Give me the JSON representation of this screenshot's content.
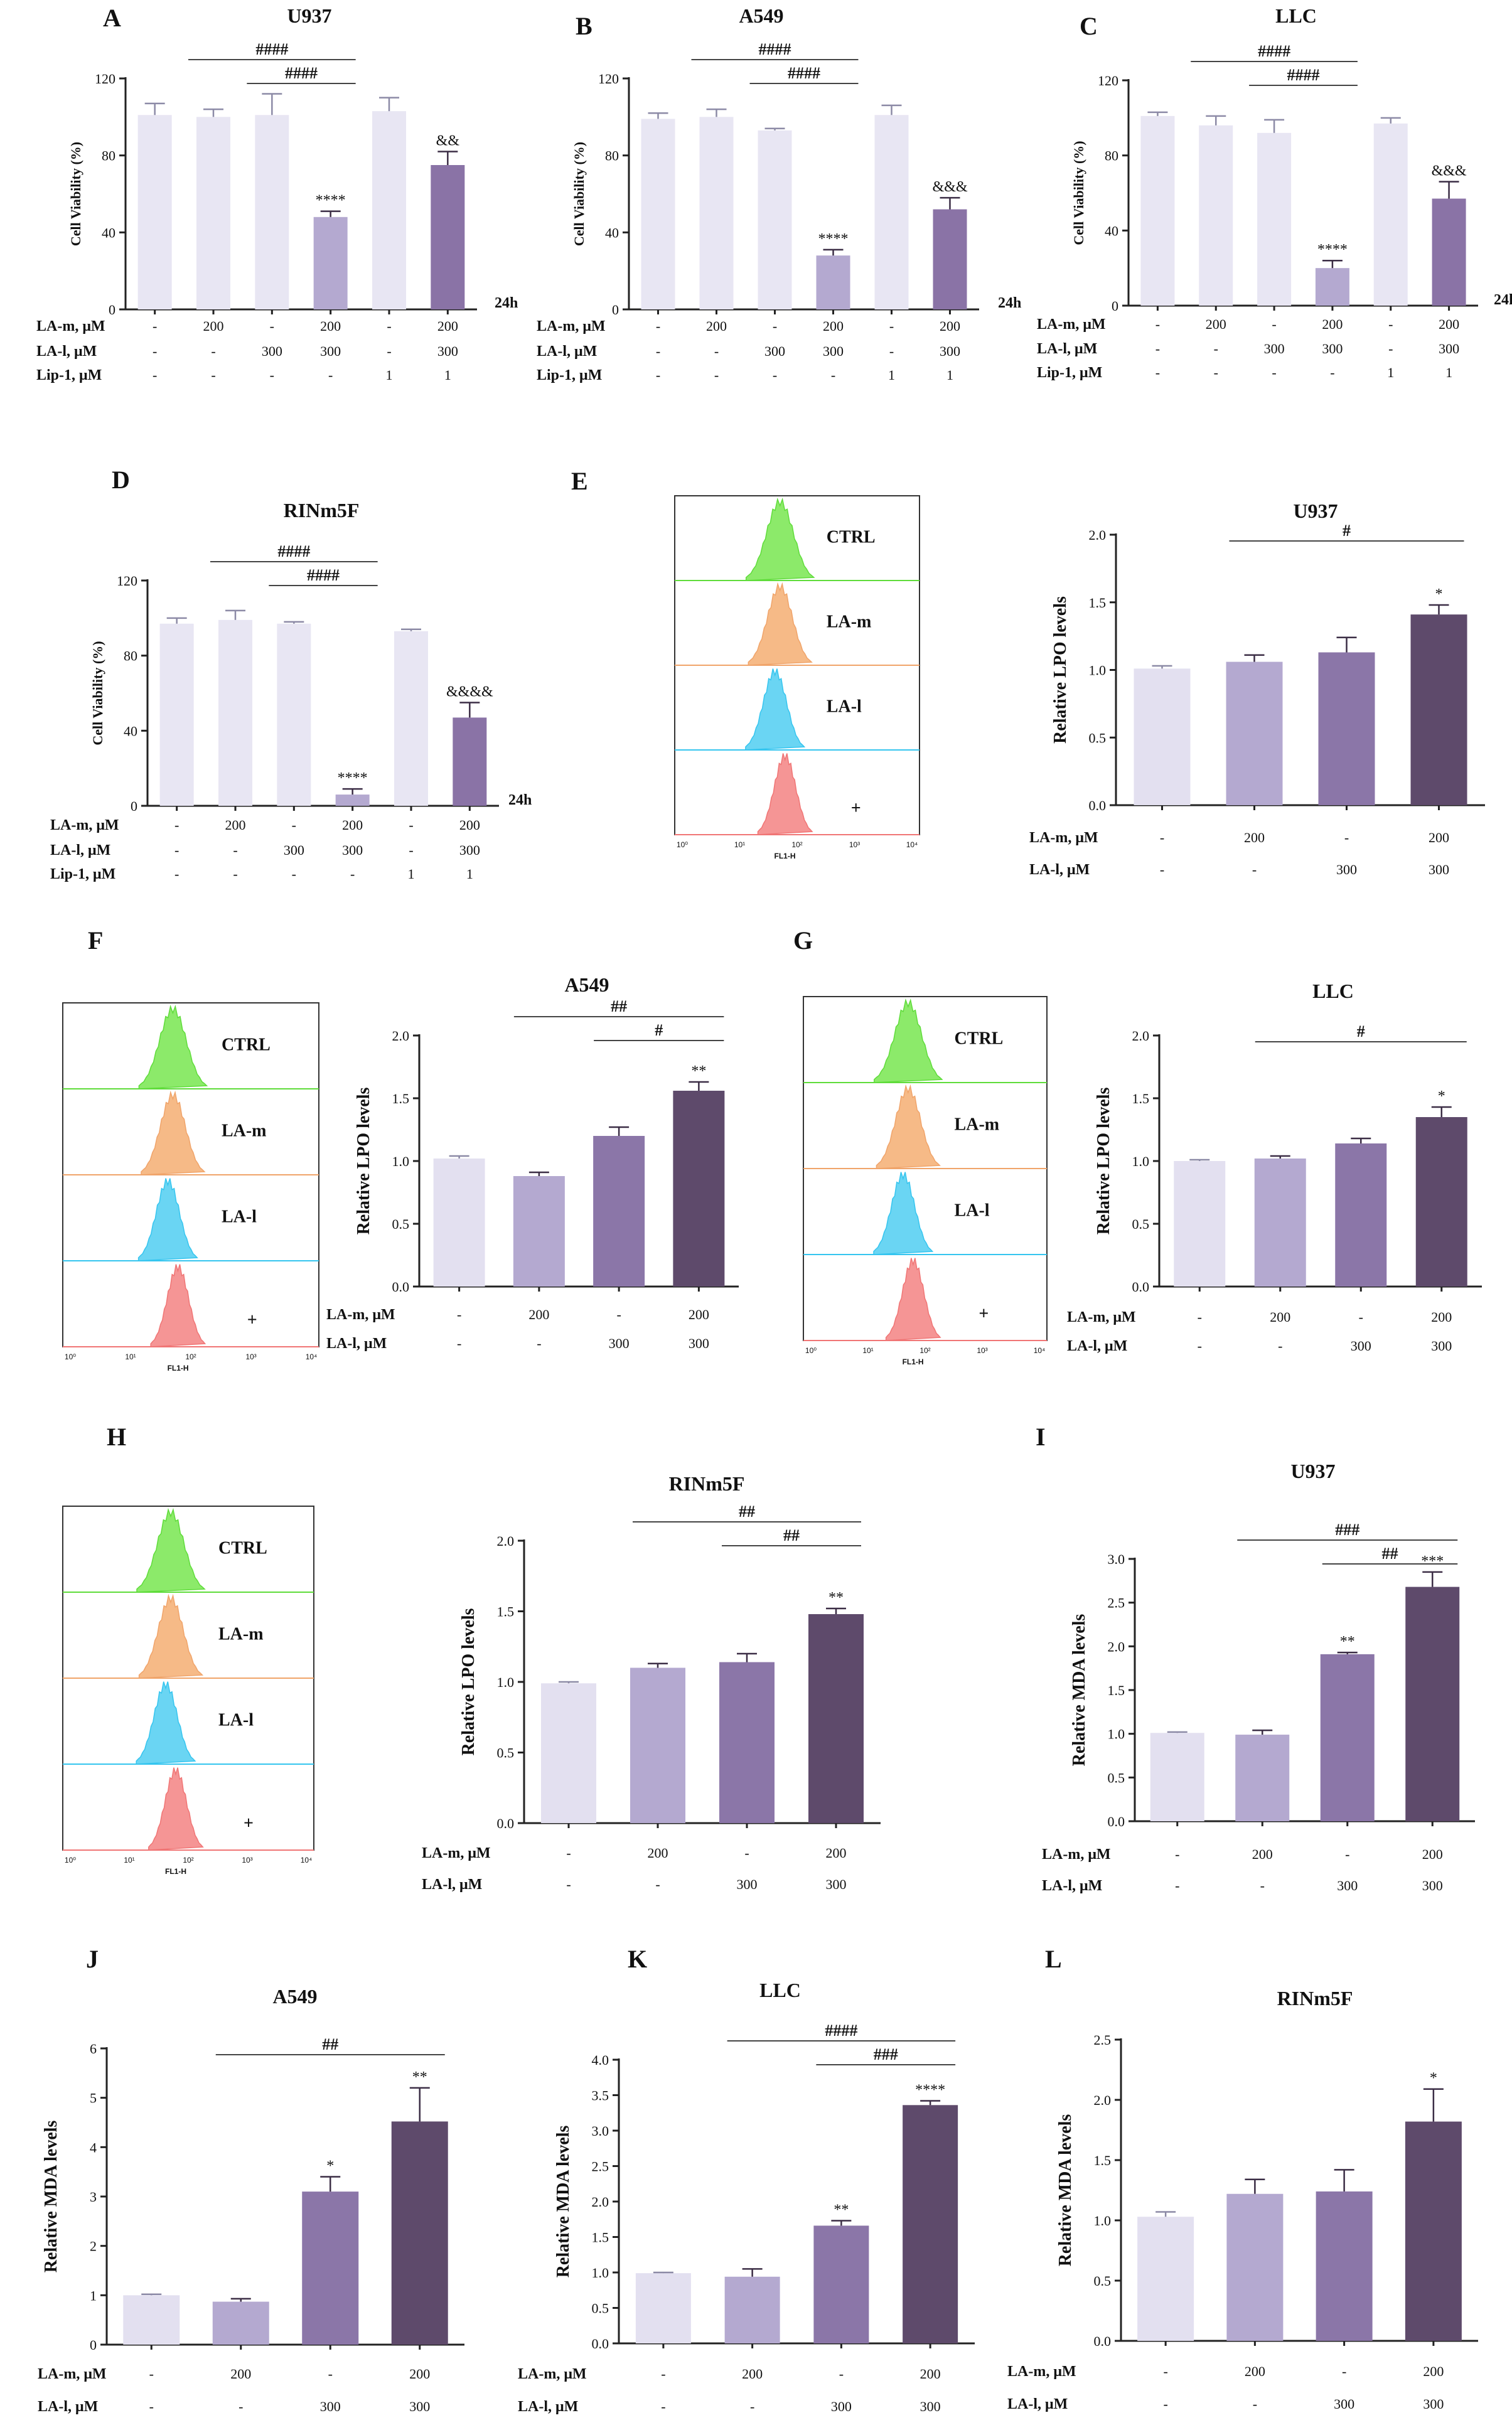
{
  "colors": {
    "ctrl": "#e3e0f0",
    "lam": "#b4a9d0",
    "lal": "#8b76a8",
    "combo": "#5e4a6b",
    "lip": "#e8e6f3",
    "lipcombo": "#8a73a6",
    "green": "#5fdc3a",
    "orange": "#f0a46a",
    "cyan": "#35c5ef",
    "red": "#f07575"
  },
  "chart_data": [
    {
      "id": "A",
      "type": "bar",
      "title": "U937",
      "ylabel": "Cell Viability (%)",
      "ylim": [
        0,
        120
      ],
      "yticks": [
        "0",
        "40",
        "80",
        "120"
      ],
      "tickvals": [
        0,
        40,
        80,
        120
      ],
      "values": [
        101,
        100,
        101,
        48,
        103,
        75
      ],
      "errors": [
        6,
        4,
        11,
        3,
        7,
        7
      ],
      "colors": [
        "lip",
        "lip",
        "lip",
        "lam",
        "lip",
        "lipcombo"
      ],
      "stars": [
        "",
        "",
        "",
        "****",
        "",
        "&&"
      ],
      "brackets": [
        {
          "from": 1,
          "to": 3,
          "label": "####"
        },
        {
          "from": 2,
          "to": 3,
          "label": "####"
        }
      ],
      "time": "24h",
      "rows": [
        {
          "label": "LA-m, μM",
          "values": [
            "-",
            "200",
            "-",
            "200",
            "-",
            "200"
          ]
        },
        {
          "label": "LA-l,  μM",
          "values": [
            "-",
            "-",
            "300",
            "300",
            "-",
            "300"
          ]
        },
        {
          "label": "Lip-1,  μM",
          "values": [
            "-",
            "-",
            "-",
            "-",
            "1",
            "1"
          ]
        }
      ]
    },
    {
      "id": "B",
      "type": "bar",
      "title": "A549",
      "ylabel": "Cell Viability (%)",
      "ylim": [
        0,
        120
      ],
      "yticks": [
        "0",
        "40",
        "80",
        "120"
      ],
      "tickvals": [
        0,
        40,
        80,
        120
      ],
      "values": [
        99,
        100,
        93,
        28,
        101,
        52
      ],
      "errors": [
        3,
        4,
        1,
        3,
        5,
        6
      ],
      "colors": [
        "lip",
        "lip",
        "lip",
        "lam",
        "lip",
        "lipcombo"
      ],
      "stars": [
        "",
        "",
        "",
        "****",
        "",
        "&&&"
      ],
      "brackets": [
        {
          "from": 1,
          "to": 3,
          "label": "####"
        },
        {
          "from": 2,
          "to": 3,
          "label": "####"
        }
      ],
      "time": "24h",
      "rows": [
        {
          "label": "LA-m, μM",
          "values": [
            "-",
            "200",
            "-",
            "200",
            "-",
            "200"
          ]
        },
        {
          "label": "LA-l,  μM",
          "values": [
            "-",
            "-",
            "300",
            "300",
            "-",
            "300"
          ]
        },
        {
          "label": "Lip-1,  μM",
          "values": [
            "-",
            "-",
            "-",
            "-",
            "1",
            "1"
          ]
        }
      ]
    },
    {
      "id": "C",
      "type": "bar",
      "title": "LLC",
      "ylabel": "Cell Viability (%)",
      "ylim": [
        0,
        120
      ],
      "yticks": [
        "0",
        "40",
        "80",
        "120"
      ],
      "tickvals": [
        0,
        40,
        80,
        120
      ],
      "values": [
        101,
        96,
        92,
        20,
        97,
        57
      ],
      "errors": [
        2,
        5,
        7,
        4,
        3,
        9
      ],
      "colors": [
        "lip",
        "lip",
        "lip",
        "lam",
        "lip",
        "lipcombo"
      ],
      "stars": [
        "",
        "",
        "",
        "****",
        "",
        "&&&"
      ],
      "brackets": [
        {
          "from": 1,
          "to": 3,
          "label": "####"
        },
        {
          "from": 2,
          "to": 3,
          "label": "####"
        }
      ],
      "time": "24h",
      "rows": [
        {
          "label": "LA-m, μM",
          "values": [
            "-",
            "200",
            "-",
            "200",
            "-",
            "200"
          ]
        },
        {
          "label": "LA-l,  μM",
          "values": [
            "-",
            "-",
            "300",
            "300",
            "-",
            "300"
          ]
        },
        {
          "label": "Lip-1,  μM",
          "values": [
            "-",
            "-",
            "-",
            "-",
            "1",
            "1"
          ]
        }
      ]
    },
    {
      "id": "D",
      "type": "bar",
      "title": "RINm5F",
      "ylabel": "Cell Viability (%)",
      "ylim": [
        0,
        120
      ],
      "yticks": [
        "0",
        "40",
        "80",
        "120"
      ],
      "tickvals": [
        0,
        40,
        80,
        120
      ],
      "values": [
        97,
        99,
        97,
        6,
        93,
        47
      ],
      "errors": [
        3,
        5,
        1,
        3,
        1,
        8
      ],
      "colors": [
        "lip",
        "lip",
        "lip",
        "lam",
        "lip",
        "lipcombo"
      ],
      "stars": [
        "",
        "",
        "",
        "****",
        "",
        "&&&&"
      ],
      "brackets": [
        {
          "from": 1,
          "to": 3,
          "label": "####"
        },
        {
          "from": 2,
          "to": 3,
          "label": "####"
        }
      ],
      "time": "24h",
      "rows": [
        {
          "label": "LA-m, μM",
          "values": [
            "-",
            "200",
            "-",
            "200",
            "-",
            "200"
          ]
        },
        {
          "label": "LA-l,  μM",
          "values": [
            "-",
            "-",
            "300",
            "300",
            "-",
            "300"
          ]
        },
        {
          "label": "Lip-1,  μM",
          "values": [
            "-",
            "-",
            "-",
            "-",
            "1",
            "1"
          ]
        }
      ]
    },
    {
      "id": "E",
      "type": "bar",
      "title": "U937",
      "ylabel": "Relative LPO levels",
      "ylim": [
        0,
        2.0
      ],
      "yticks": [
        "0.0",
        "0.5",
        "1.0",
        "1.5",
        "2.0"
      ],
      "tickvals": [
        0,
        0.5,
        1.0,
        1.5,
        2.0
      ],
      "values": [
        1.01,
        1.06,
        1.13,
        1.41
      ],
      "errors": [
        0.02,
        0.05,
        0.11,
        0.07
      ],
      "colors": [
        "ctrl",
        "lam",
        "lal",
        "combo"
      ],
      "stars": [
        "",
        "",
        "",
        "*"
      ],
      "brackets": [
        {
          "from": 1,
          "to": 3,
          "label": "#"
        }
      ],
      "rows": [
        {
          "label": "LA-m, μM",
          "values": [
            "-",
            "200",
            "-",
            "200"
          ]
        },
        {
          "label": "LA-l, μM",
          "values": [
            "-",
            "-",
            "300",
            "300"
          ]
        }
      ]
    },
    {
      "id": "F",
      "type": "bar",
      "title": "A549",
      "ylabel": "Relative LPO levels",
      "ylim": [
        0,
        2.0
      ],
      "yticks": [
        "0.0",
        "0.5",
        "1.0",
        "1.5",
        "2.0"
      ],
      "tickvals": [
        0,
        0.5,
        1.0,
        1.5,
        2.0
      ],
      "values": [
        1.02,
        0.88,
        1.2,
        1.56
      ],
      "errors": [
        0.02,
        0.03,
        0.07,
        0.07
      ],
      "colors": [
        "ctrl",
        "lam",
        "lal",
        "combo"
      ],
      "stars": [
        "",
        "",
        "",
        "**"
      ],
      "brackets": [
        {
          "from": 1,
          "to": 3,
          "label": "##"
        },
        {
          "from": 2,
          "to": 3,
          "label": "#"
        }
      ],
      "rows": [
        {
          "label": "LA-m, μM",
          "values": [
            "-",
            "200",
            "-",
            "200"
          ]
        },
        {
          "label": "LA-l, μM",
          "values": [
            "-",
            "-",
            "300",
            "300"
          ]
        }
      ]
    },
    {
      "id": "G",
      "type": "bar",
      "title": "LLC",
      "ylabel": "Relative LPO levels",
      "ylim": [
        0,
        2.0
      ],
      "yticks": [
        "0.0",
        "0.5",
        "1.0",
        "1.5",
        "2.0"
      ],
      "tickvals": [
        0,
        0.5,
        1.0,
        1.5,
        2.0
      ],
      "values": [
        1.0,
        1.02,
        1.14,
        1.35
      ],
      "errors": [
        0.01,
        0.02,
        0.04,
        0.08
      ],
      "colors": [
        "ctrl",
        "lam",
        "lal",
        "combo"
      ],
      "stars": [
        "",
        "",
        "",
        "*"
      ],
      "brackets": [
        {
          "from": 1,
          "to": 3,
          "label": "#"
        }
      ],
      "rows": [
        {
          "label": "LA-m, μM",
          "values": [
            "-",
            "200",
            "-",
            "200"
          ]
        },
        {
          "label": "LA-l, μM",
          "values": [
            "-",
            "-",
            "300",
            "300"
          ]
        }
      ]
    },
    {
      "id": "H",
      "type": "bar",
      "title": "RINm5F",
      "ylabel": "Relative LPO levels",
      "ylim": [
        0,
        2.0
      ],
      "yticks": [
        "0.0",
        "0.5",
        "1.0",
        "1.5",
        "2.0"
      ],
      "tickvals": [
        0,
        0.5,
        1.0,
        1.5,
        2.0
      ],
      "values": [
        0.99,
        1.1,
        1.14,
        1.48
      ],
      "errors": [
        0.01,
        0.03,
        0.06,
        0.04
      ],
      "colors": [
        "ctrl",
        "lam",
        "lal",
        "combo"
      ],
      "stars": [
        "",
        "",
        "",
        "**"
      ],
      "brackets": [
        {
          "from": 1,
          "to": 3,
          "label": "##"
        },
        {
          "from": 2,
          "to": 3,
          "label": "##"
        }
      ],
      "rows": [
        {
          "label": "LA-m, μM",
          "values": [
            "-",
            "200",
            "-",
            "200"
          ]
        },
        {
          "label": "LA-l, μM",
          "values": [
            "-",
            "-",
            "300",
            "300"
          ]
        }
      ]
    },
    {
      "id": "I",
      "type": "bar",
      "title": "U937",
      "ylabel": "Relative MDA levels",
      "ylim": [
        0,
        3.0
      ],
      "yticks": [
        "0.0",
        "0.5",
        "1.0",
        "1.5",
        "2.0",
        "2.5",
        "3.0"
      ],
      "tickvals": [
        0,
        0.5,
        1.0,
        1.5,
        2.0,
        2.5,
        3.0
      ],
      "values": [
        1.01,
        0.99,
        1.91,
        2.68
      ],
      "errors": [
        0.01,
        0.05,
        0.02,
        0.17
      ],
      "colors": [
        "ctrl",
        "lam",
        "lal",
        "combo"
      ],
      "stars": [
        "",
        "",
        "**",
        "***"
      ],
      "brackets": [
        {
          "from": 1,
          "to": 3,
          "label": "###"
        },
        {
          "from": 2,
          "to": 3,
          "label": "##"
        }
      ],
      "rows": [
        {
          "label": "LA-m, μM",
          "values": [
            "-",
            "200",
            "-",
            "200"
          ]
        },
        {
          "label": "LA-l, μM",
          "values": [
            "-",
            "-",
            "300",
            "300"
          ]
        }
      ]
    },
    {
      "id": "J",
      "type": "bar",
      "title": "A549",
      "ylabel": "Relative MDA levels",
      "ylim": [
        0,
        6
      ],
      "yticks": [
        "0",
        "1",
        "2",
        "3",
        "4",
        "5",
        "6"
      ],
      "tickvals": [
        0,
        1,
        2,
        3,
        4,
        5,
        6
      ],
      "values": [
        1.0,
        0.87,
        3.1,
        4.52
      ],
      "errors": [
        0.02,
        0.06,
        0.3,
        0.68
      ],
      "colors": [
        "ctrl",
        "lam",
        "lal",
        "combo"
      ],
      "stars": [
        "",
        "",
        "*",
        "**"
      ],
      "brackets": [
        {
          "from": 1,
          "to": 3,
          "label": "##"
        }
      ],
      "rows": [
        {
          "label": "LA-m, μM",
          "values": [
            "-",
            "200",
            "-",
            "200"
          ]
        },
        {
          "label": "LA-l, μM",
          "values": [
            "-",
            "-",
            "300",
            "300"
          ]
        }
      ]
    },
    {
      "id": "K",
      "type": "bar",
      "title": "LLC",
      "ylabel": "Relative MDA levels",
      "ylim": [
        0,
        4.0
      ],
      "yticks": [
        "0.0",
        "0.5",
        "1.0",
        "1.5",
        "2.0",
        "2.5",
        "3.0",
        "3.5",
        "4.0"
      ],
      "tickvals": [
        0,
        0.5,
        1.0,
        1.5,
        2.0,
        2.5,
        3.0,
        3.5,
        4.0
      ],
      "values": [
        0.99,
        0.94,
        1.66,
        3.36
      ],
      "errors": [
        0.01,
        0.11,
        0.07,
        0.06
      ],
      "colors": [
        "ctrl",
        "lam",
        "lal",
        "combo"
      ],
      "stars": [
        "",
        "",
        "**",
        "****"
      ],
      "brackets": [
        {
          "from": 1,
          "to": 3,
          "label": "####"
        },
        {
          "from": 2,
          "to": 3,
          "label": "###"
        }
      ],
      "rows": [
        {
          "label": "LA-m, μM",
          "values": [
            "-",
            "200",
            "-",
            "200"
          ]
        },
        {
          "label": "LA-l, μM",
          "values": [
            "-",
            "-",
            "300",
            "300"
          ]
        }
      ]
    },
    {
      "id": "L",
      "type": "bar",
      "title": "RINm5F",
      "ylabel": "Relative MDA levels",
      "ylim": [
        0,
        2.5
      ],
      "yticks": [
        "0.0",
        "0.5",
        "1.0",
        "1.5",
        "2.0",
        "2.5"
      ],
      "tickvals": [
        0,
        0.5,
        1.0,
        1.5,
        2.0,
        2.5
      ],
      "values": [
        1.03,
        1.22,
        1.24,
        1.82
      ],
      "errors": [
        0.04,
        0.12,
        0.18,
        0.27
      ],
      "colors": [
        "ctrl",
        "lam",
        "lal",
        "combo"
      ],
      "stars": [
        "",
        "",
        "",
        "*"
      ],
      "brackets": [],
      "rows": [
        {
          "label": "LA-m, μM",
          "values": [
            "-",
            "200",
            "-",
            "200"
          ]
        },
        {
          "label": "LA-l, μM",
          "values": [
            "-",
            "-",
            "300",
            "300"
          ]
        }
      ]
    }
  ],
  "flow_panels": [
    {
      "id": "E",
      "labels": [
        "CTRL",
        "LA-m",
        "LA-l",
        "+"
      ],
      "xaxis_label": "FL1-H",
      "ticks": [
        "10⁰",
        "10¹",
        "10²",
        "10³",
        "10⁴"
      ]
    },
    {
      "id": "F",
      "labels": [
        "CTRL",
        "LA-m",
        "LA-l",
        "+"
      ],
      "xaxis_label": "FL1-H",
      "ticks": [
        "10⁰",
        "10¹",
        "10²",
        "10³",
        "10⁴"
      ]
    },
    {
      "id": "G",
      "labels": [
        "CTRL",
        "LA-m",
        "LA-l",
        "+"
      ],
      "xaxis_label": "FL1-H",
      "ticks": [
        "10⁰",
        "10¹",
        "10²",
        "10³",
        "10⁴"
      ]
    },
    {
      "id": "H",
      "labels": [
        "CTRL",
        "LA-m",
        "LA-l",
        "+"
      ],
      "xaxis_label": "FL1-H",
      "ticks": [
        "10⁰",
        "10¹",
        "10²",
        "10³",
        "10⁴"
      ]
    }
  ]
}
